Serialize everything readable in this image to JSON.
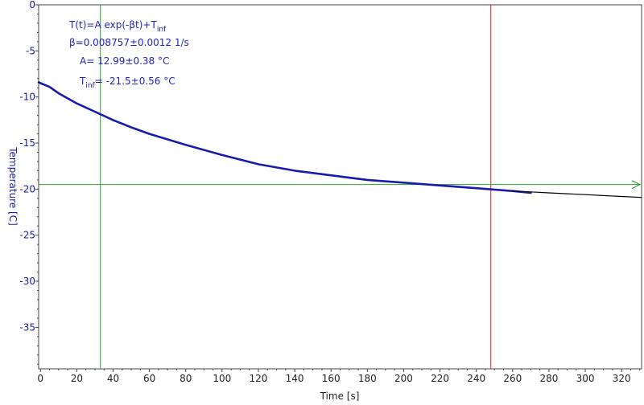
{
  "chart_data": {
    "type": "line",
    "title": "",
    "xlabel": "Time [s]",
    "ylabel": "Temperature [C]",
    "xlim": [
      -1,
      331
    ],
    "ylim": [
      -39.5,
      0
    ],
    "xticks": [
      0,
      20,
      40,
      60,
      80,
      100,
      120,
      140,
      160,
      180,
      200,
      220,
      240,
      260,
      280,
      300,
      320
    ],
    "yticks": [
      0,
      -5,
      -10,
      -15,
      -20,
      -25,
      -30,
      -35
    ],
    "grid": false,
    "series": [
      {
        "name": "",
        "color": "#1a1ab0",
        "style": "measured",
        "x": [
          -1,
          0,
          5,
          10,
          20,
          30,
          40,
          50,
          60,
          80,
          100,
          120,
          140,
          160,
          180,
          200,
          220,
          240,
          260,
          270
        ],
        "y": [
          -8.4,
          -8.5,
          -8.9,
          -9.6,
          -10.7,
          -11.6,
          -12.5,
          -13.3,
          -14.0,
          -15.2,
          -16.3,
          -17.3,
          -18.0,
          -18.5,
          -19.0,
          -19.3,
          -19.6,
          -19.9,
          -20.2,
          -20.4
        ]
      },
      {
        "name": "",
        "color": "#000000",
        "style": "fit",
        "x": [
          260,
          270,
          280,
          290,
          300,
          310,
          320,
          331
        ],
        "y": [
          -20.2,
          -20.3,
          -20.4,
          -20.5,
          -20.6,
          -20.7,
          -20.8,
          -20.9
        ]
      }
    ],
    "annotations": {
      "equation_prefix": "T(t)=A exp(-βt)+T",
      "equation_sub": "inf",
      "beta": "β=0.008757±0.0012 1/s",
      "amplitude": "A= 12.99±0.38 °C",
      "tinf_main": "T",
      "tinf_sub": "inf",
      "tinf_value": "= -21.5±0.56 °C"
    },
    "cursors": {
      "green_vertical_x": 33,
      "red_vertical_x": 248,
      "green_horizontal_y": -19.5
    },
    "colors": {
      "data": "#1a1ab0",
      "fit": "#000000",
      "green_cursor": "#2ca02c",
      "red_cursor": "#e02020",
      "annotation": "#2323c8",
      "ylabel": "#1a1aa8"
    }
  }
}
